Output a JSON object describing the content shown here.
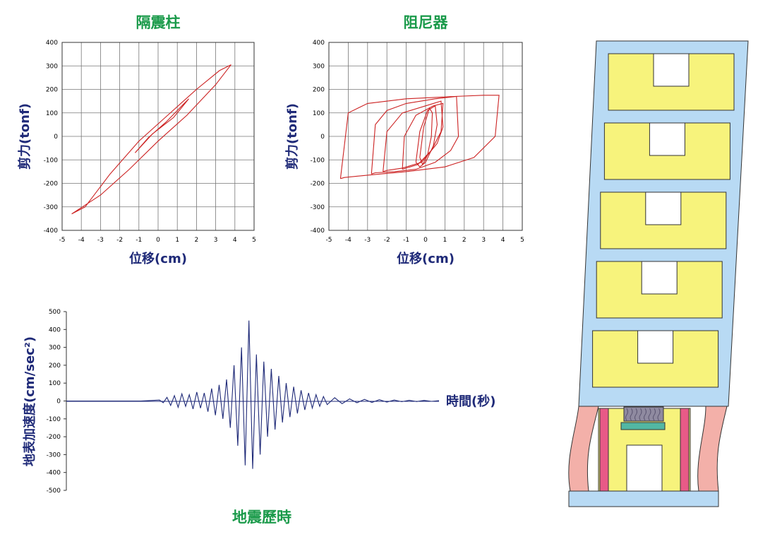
{
  "chart_data": [
    {
      "type": "line",
      "title": "隔震柱",
      "xlabel": "位移(cm)",
      "ylabel": "剪力(tonf)",
      "xlim": [
        -5,
        5
      ],
      "ylim": [
        -400,
        400
      ],
      "xticks": [
        "-5",
        "-4",
        "-3",
        "-2",
        "-1",
        "0",
        "1",
        "2",
        "3",
        "4",
        "5"
      ],
      "yticks": [
        "400",
        "300",
        "200",
        "100",
        "0",
        "-100",
        "-200",
        "-300",
        "-400"
      ],
      "grid": true,
      "color": "#cc2222",
      "series": [
        {
          "x": [
            -4.5,
            -3.8,
            -2.5,
            -1.0,
            0.5,
            2.0,
            3.2,
            3.8,
            3.0,
            1.5,
            0.0,
            -1.5,
            -3.0,
            -4.5
          ],
          "y": [
            -330,
            -300,
            -160,
            -20,
            90,
            200,
            280,
            305,
            220,
            90,
            -20,
            -140,
            -250,
            -330
          ]
        },
        {
          "x": [
            -1.2,
            -0.5,
            0.4,
            1.6,
            0.8,
            -0.3,
            -1.2
          ],
          "y": [
            -70,
            -5,
            60,
            160,
            80,
            10,
            -70
          ]
        }
      ]
    },
    {
      "type": "line",
      "title": "阻尼器",
      "xlabel": "位移(cm)",
      "ylabel": "剪力(tonf)",
      "xlim": [
        -5,
        5
      ],
      "ylim": [
        -400,
        400
      ],
      "xticks": [
        "-5",
        "-4",
        "-3",
        "-2",
        "-1",
        "0",
        "1",
        "2",
        "3",
        "4",
        "5"
      ],
      "yticks": [
        "400",
        "300",
        "200",
        "100",
        "0",
        "-100",
        "-200",
        "-300",
        "-400"
      ],
      "grid": true,
      "color": "#cc2222",
      "series": [
        {
          "x": [
            -4.4,
            -4.0,
            -3.0,
            -1.0,
            1.5,
            3.0,
            3.8,
            3.6,
            2.5,
            1.0,
            -1.0,
            -3.0,
            -4.2,
            -4.4
          ],
          "y": [
            -180,
            100,
            140,
            160,
            170,
            175,
            175,
            0,
            -90,
            -130,
            -150,
            -165,
            -175,
            -180
          ]
        },
        {
          "x": [
            -2.8,
            -2.6,
            -2.0,
            -1.0,
            0.5,
            1.6,
            1.7,
            1.3,
            0.5,
            -0.5,
            -1.6,
            -2.6,
            -2.8
          ],
          "y": [
            -160,
            50,
            110,
            140,
            160,
            170,
            0,
            -60,
            -110,
            -140,
            -150,
            -155,
            -160
          ]
        },
        {
          "x": [
            -2.2,
            -2.0,
            -1.2,
            0.0,
            0.8,
            0.9,
            0.6,
            -0.2,
            -1.2,
            -2.0,
            -2.2
          ],
          "y": [
            -150,
            20,
            100,
            130,
            150,
            40,
            -30,
            -110,
            -135,
            -145,
            -150
          ]
        },
        {
          "x": [
            -1.2,
            -1.1,
            -0.5,
            0.4,
            0.9,
            0.8,
            0.3,
            -0.4,
            -1.0,
            -1.2
          ],
          "y": [
            -140,
            0,
            90,
            130,
            140,
            20,
            -60,
            -120,
            -135,
            -140
          ]
        },
        {
          "x": [
            -0.5,
            -0.3,
            0.1,
            0.5,
            0.6,
            0.4,
            0.0,
            -0.3,
            -0.5
          ],
          "y": [
            -110,
            20,
            110,
            130,
            50,
            -40,
            -110,
            -130,
            -110
          ]
        },
        {
          "x": [
            -0.3,
            -0.1,
            0.2,
            0.35,
            0.3,
            0.1,
            -0.15,
            -0.3
          ],
          "y": [
            -90,
            40,
            120,
            100,
            0,
            -80,
            -120,
            -90
          ]
        }
      ]
    },
    {
      "type": "line",
      "title": "地震歷時",
      "xlabel": "時間(秒)",
      "ylabel": "地表加速度(cm/sec²)",
      "ylim": [
        -500,
        500
      ],
      "yticks": [
        "500",
        "400",
        "300",
        "200",
        "100",
        "0",
        "-100",
        "-200",
        "-300",
        "-400",
        "-500"
      ],
      "grid": false,
      "color": "#1f2a78",
      "series": [
        {
          "x": [
            0,
            10,
            20,
            25,
            26,
            27,
            28,
            29,
            30,
            31,
            32,
            33,
            34,
            35,
            36,
            37,
            38,
            39,
            40,
            41,
            42,
            43,
            44,
            45,
            46,
            47,
            48,
            49,
            50,
            51,
            52,
            53,
            54,
            55,
            56,
            57,
            58,
            59,
            60,
            61,
            62,
            63,
            64,
            65,
            66,
            67,
            68,
            69,
            70,
            72,
            74,
            76,
            78,
            80,
            82,
            84,
            86,
            88,
            90,
            92,
            94,
            96,
            98,
            100
          ],
          "y": [
            0,
            0,
            0,
            5,
            -10,
            20,
            -25,
            30,
            -35,
            40,
            -30,
            35,
            -45,
            50,
            -40,
            45,
            -60,
            70,
            -80,
            90,
            -100,
            120,
            -150,
            200,
            -250,
            300,
            -360,
            450,
            -380,
            260,
            -300,
            220,
            -200,
            180,
            -160,
            140,
            -120,
            100,
            -90,
            80,
            -70,
            60,
            -50,
            45,
            -40,
            35,
            -30,
            25,
            -20,
            18,
            -15,
            12,
            -10,
            9,
            -8,
            7,
            -6,
            5,
            -4,
            4,
            -3,
            3,
            -2,
            2
          ]
        }
      ]
    }
  ],
  "building": {
    "stories": 5,
    "colors": {
      "frame": "#b8daf4",
      "panel": "#f7f37c",
      "column": "#f3b0a9",
      "isolator": "#e85a87",
      "damper": "#8f8aa0",
      "damper_base": "#52b7a3",
      "outline": "#333333"
    }
  }
}
